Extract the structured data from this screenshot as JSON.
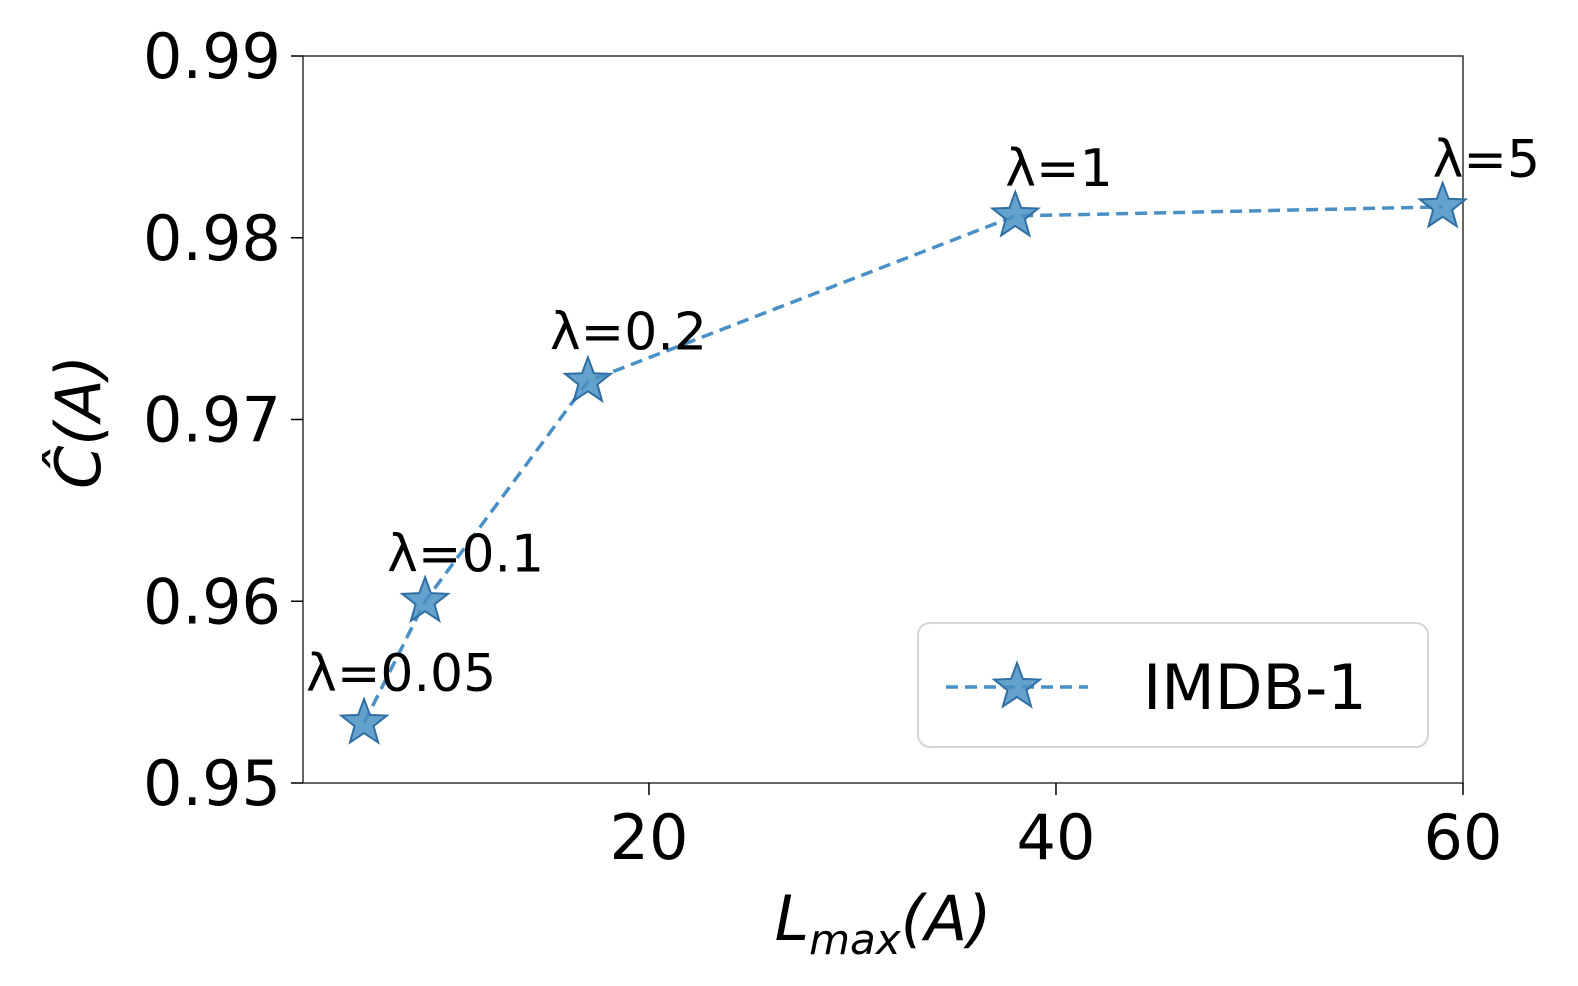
{
  "chart_data": {
    "type": "line",
    "xlabel": "L_max(A)",
    "xlabel_main": "L",
    "xlabel_sub": "max",
    "xlabel_rest": "(A)",
    "ylabel": "Ĉ(A)",
    "xlim": [
      3,
      60
    ],
    "ylim": [
      0.95,
      0.99
    ],
    "xticks": [
      20,
      40,
      60
    ],
    "xtick_labels": [
      "20",
      "40",
      "60"
    ],
    "yticks": [
      0.95,
      0.96,
      0.97,
      0.98,
      0.99
    ],
    "ytick_labels": [
      "0.95",
      "0.96",
      "0.97",
      "0.98",
      "0.99"
    ],
    "grid": false,
    "legend_position": "lower-right",
    "series": [
      {
        "name": "IMDB-1",
        "color": "#4a90c4",
        "line_style": "dashed",
        "marker": "star",
        "x": [
          6,
          9,
          17,
          38,
          59
        ],
        "y": [
          0.9533,
          0.96,
          0.9721,
          0.9812,
          0.9817
        ],
        "annotations": [
          "λ=0.05",
          "λ=0.1",
          "λ=0.2",
          "λ=1",
          "λ=5"
        ]
      }
    ]
  }
}
